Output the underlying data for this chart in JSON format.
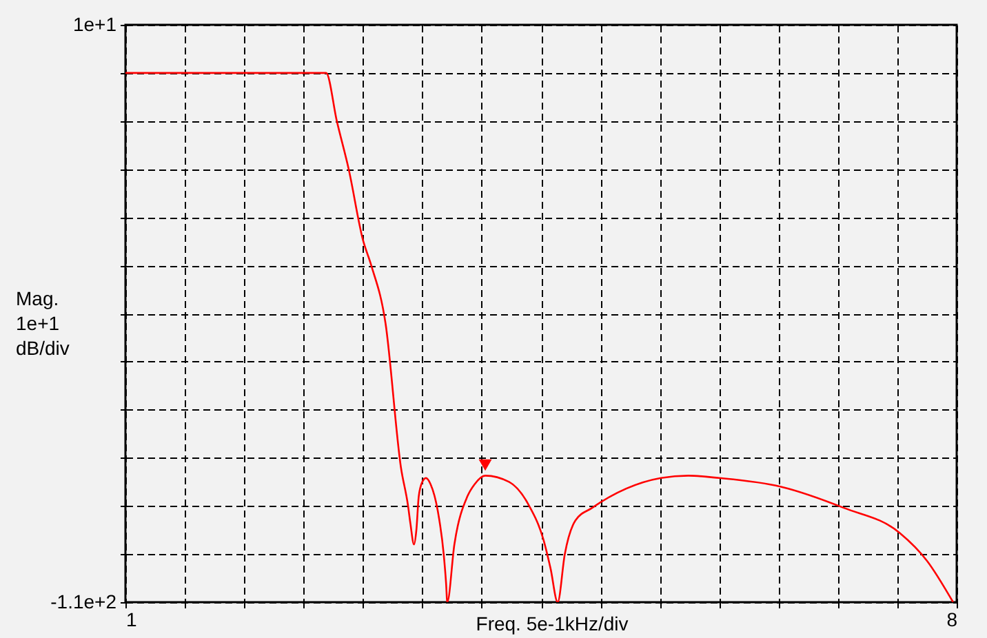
{
  "chart_data": {
    "type": "line",
    "xlabel": "Freq. 5e-1kHz/div",
    "ylabel": "Mag.\n1e+1\ndB/div",
    "xlim": [
      1,
      8
    ],
    "ylim": [
      -110,
      10
    ],
    "xticks": [
      {
        "value": 1,
        "label": "1"
      },
      {
        "value": 1.5,
        "label": null
      },
      {
        "value": 2,
        "label": null
      },
      {
        "value": 2.5,
        "label": null
      },
      {
        "value": 3,
        "label": null
      },
      {
        "value": 3.5,
        "label": null
      },
      {
        "value": 4,
        "label": null
      },
      {
        "value": 4.5,
        "label": null
      },
      {
        "value": 5,
        "label": null
      },
      {
        "value": 5.5,
        "label": null
      },
      {
        "value": 6,
        "label": null
      },
      {
        "value": 6.5,
        "label": null
      },
      {
        "value": 7,
        "label": null
      },
      {
        "value": 7.5,
        "label": null
      },
      {
        "value": 8,
        "label": "8"
      }
    ],
    "yticks": [
      {
        "value": -110,
        "label": "-1.1e+2"
      },
      {
        "value": -100,
        "label": null
      },
      {
        "value": -90,
        "label": null
      },
      {
        "value": -80,
        "label": null
      },
      {
        "value": -70,
        "label": null
      },
      {
        "value": -60,
        "label": null
      },
      {
        "value": -50,
        "label": null
      },
      {
        "value": -40,
        "label": null
      },
      {
        "value": -30,
        "label": null
      },
      {
        "value": -20,
        "label": null
      },
      {
        "value": -10,
        "label": null
      },
      {
        "value": 0,
        "label": null
      },
      {
        "value": 10,
        "label": "1e+1"
      }
    ],
    "grid": true,
    "series": [
      {
        "color": "#ff0000",
        "marker": "none",
        "line_style": "solid",
        "x": [
          1,
          1.5,
          2,
          2.5,
          2.69,
          2.78,
          2.88,
          3.0,
          3.07,
          3.19,
          3.32,
          3.38,
          3.4,
          3.43,
          3.45,
          3.47,
          3.5,
          3.53,
          3.57,
          3.63,
          3.68,
          3.7,
          3.71,
          3.77,
          3.88,
          3.94,
          4.03,
          4.23,
          4.4,
          4.52,
          4.58,
          4.64,
          4.7,
          4.79,
          4.93,
          5.51,
          5.74,
          6.0,
          6.52,
          7.05,
          7.52,
          7.75,
          7.97
        ],
        "values": [
          0,
          0,
          0,
          0,
          0,
          -10,
          -20,
          -34.7,
          -40,
          -52,
          -82,
          -90,
          -93.7,
          -98,
          -95,
          -88,
          -85,
          -84.2,
          -85.5,
          -91,
          -100,
          -106,
          -110,
          -98,
          -88,
          -85.5,
          -83.7,
          -85,
          -90,
          -97,
          -103,
          -110,
          -100,
          -93,
          -90.4,
          -84.2,
          -83.7,
          -84.2,
          -86,
          -90.4,
          -95.6,
          -101.4,
          -110
        ]
      },
      {
        "type": "scatter",
        "color": "#ff0000",
        "marker": "triangle",
        "x": [
          4.03
        ],
        "values": [
          -81.5
        ]
      }
    ]
  }
}
